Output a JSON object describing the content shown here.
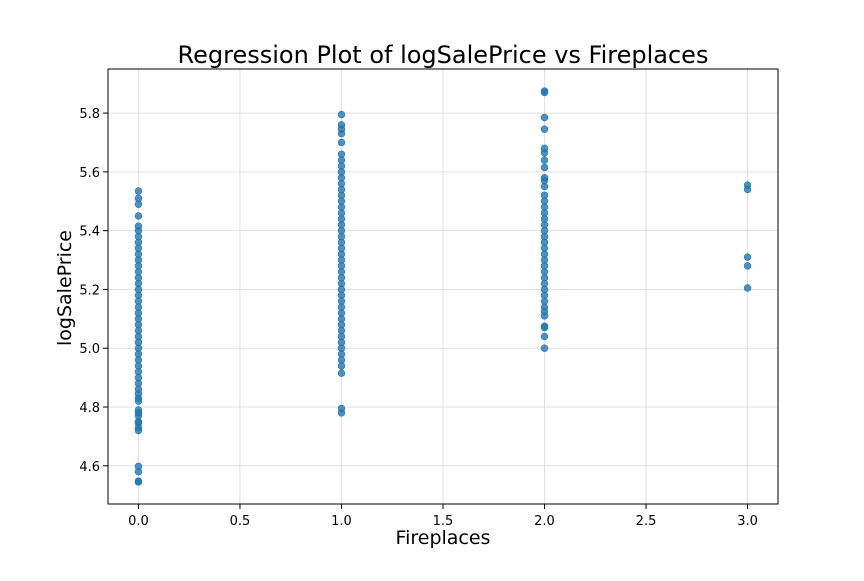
{
  "chart_data": {
    "type": "scatter",
    "title": "Regression Plot of logSalePrice vs Fireplaces",
    "xlabel": "Fireplaces",
    "ylabel": "logSalePrice",
    "xlim": [
      -0.15,
      3.15
    ],
    "ylim": [
      4.47,
      5.95
    ],
    "xticks": [
      0.0,
      0.5,
      1.0,
      1.5,
      2.0,
      2.5,
      3.0
    ],
    "xtick_labels": [
      "0.0",
      "0.5",
      "1.0",
      "1.5",
      "2.0",
      "2.5",
      "3.0"
    ],
    "yticks": [
      4.6,
      4.8,
      5.0,
      5.2,
      5.4,
      5.6,
      5.8
    ],
    "ytick_labels": [
      "4.6",
      "4.8",
      "5.0",
      "5.2",
      "5.4",
      "5.6",
      "5.8"
    ],
    "grid": true,
    "point_color": "#1f77b4",
    "series": [
      {
        "x": 0,
        "y": [
          4.545,
          4.548,
          4.58,
          4.598,
          4.72,
          4.73,
          4.745,
          4.75,
          4.77,
          4.78,
          4.79,
          4.82,
          4.83,
          4.845,
          4.86,
          4.88,
          4.9,
          4.92,
          4.94,
          4.96,
          4.98,
          5.0,
          5.02,
          5.04,
          5.06,
          5.08,
          5.1,
          5.12,
          5.14,
          5.16,
          5.18,
          5.2,
          5.22,
          5.24,
          5.26,
          5.28,
          5.3,
          5.32,
          5.34,
          5.36,
          5.38,
          5.4,
          5.415,
          5.45,
          5.49,
          5.51,
          5.535
        ]
      },
      {
        "x": 1,
        "y": [
          4.78,
          4.795,
          4.915,
          4.94,
          4.96,
          4.98,
          5.0,
          5.02,
          5.04,
          5.06,
          5.08,
          5.1,
          5.12,
          5.14,
          5.16,
          5.18,
          5.2,
          5.22,
          5.24,
          5.26,
          5.28,
          5.3,
          5.32,
          5.34,
          5.36,
          5.38,
          5.4,
          5.42,
          5.44,
          5.46,
          5.48,
          5.5,
          5.52,
          5.54,
          5.56,
          5.58,
          5.6,
          5.62,
          5.64,
          5.66,
          5.7,
          5.73,
          5.745,
          5.76,
          5.795
        ]
      },
      {
        "x": 2,
        "y": [
          5.0,
          5.04,
          5.07,
          5.075,
          5.11,
          5.125,
          5.14,
          5.16,
          5.18,
          5.2,
          5.22,
          5.24,
          5.26,
          5.28,
          5.3,
          5.32,
          5.34,
          5.36,
          5.38,
          5.4,
          5.42,
          5.44,
          5.46,
          5.48,
          5.5,
          5.52,
          5.55,
          5.57,
          5.58,
          5.615,
          5.64,
          5.665,
          5.68,
          5.745,
          5.785,
          5.87,
          5.875
        ]
      },
      {
        "x": 3,
        "y": [
          5.205,
          5.28,
          5.31,
          5.54,
          5.555
        ]
      }
    ]
  }
}
